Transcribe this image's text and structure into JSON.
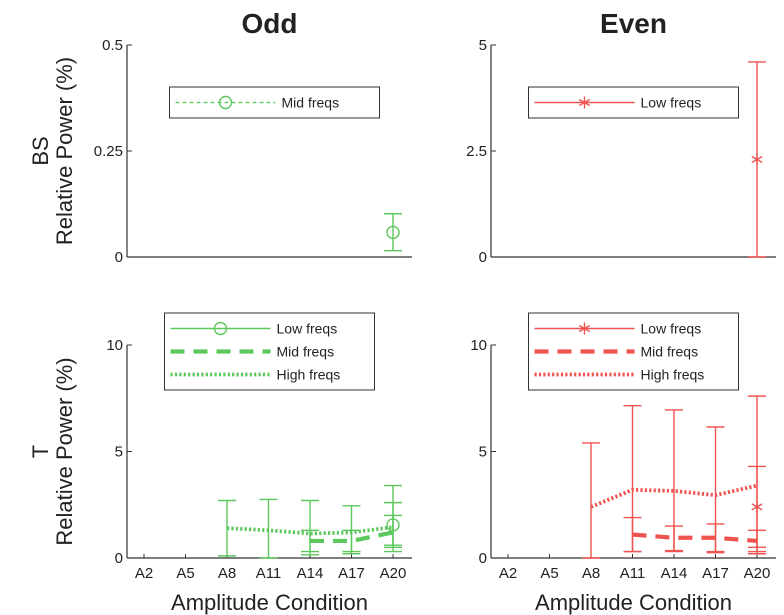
{
  "columns": [
    "Odd",
    "Even"
  ],
  "rows": [
    {
      "label": "BS",
      "ylabel": "Relative Power (%)"
    },
    {
      "label": "T",
      "ylabel": "Relative Power (%)"
    }
  ],
  "xlabel": "Amplitude Condition",
  "chart_data": [
    {
      "type": "line",
      "row": 0,
      "col": 0,
      "categories": [
        "A2",
        "A5",
        "A8",
        "A11",
        "A14",
        "A17",
        "A20"
      ],
      "ylim": [
        0,
        0.5
      ],
      "yticks": [
        0,
        0.25,
        0.5
      ],
      "ytick_labels": [
        "0",
        "0.25",
        "0.5"
      ],
      "show_xticks": false,
      "color": "#5cc85c",
      "legend_placement": "top",
      "series": [
        {
          "name": "Mid freqs",
          "style": "dashed-thin",
          "marker": "circle",
          "values": [
            null,
            null,
            null,
            null,
            null,
            null,
            0.058
          ],
          "err_low": [
            null,
            null,
            null,
            null,
            null,
            null,
            0.015
          ],
          "err_high": [
            null,
            null,
            null,
            null,
            null,
            null,
            0.102
          ]
        }
      ]
    },
    {
      "type": "line",
      "row": 0,
      "col": 1,
      "categories": [
        "A2",
        "A5",
        "A8",
        "A11",
        "A14",
        "A17",
        "A20"
      ],
      "ylim": [
        0,
        5
      ],
      "yticks": [
        0,
        2.5,
        5
      ],
      "ytick_labels": [
        "0",
        "2.5",
        "5"
      ],
      "show_xticks": false,
      "color": "#ef5350",
      "legend_placement": "top",
      "series": [
        {
          "name": "Low freqs",
          "style": "solid",
          "marker": "star",
          "values": [
            null,
            null,
            null,
            null,
            null,
            null,
            2.3
          ],
          "err_low": [
            null,
            null,
            null,
            null,
            null,
            null,
            0
          ],
          "err_high": [
            null,
            null,
            null,
            null,
            null,
            null,
            4.6
          ]
        }
      ]
    },
    {
      "type": "line",
      "row": 1,
      "col": 0,
      "categories": [
        "A2",
        "A5",
        "A8",
        "A11",
        "A14",
        "A17",
        "A20"
      ],
      "ylim": [
        0,
        10
      ],
      "yticks": [
        0,
        5,
        10
      ],
      "ytick_labels": [
        "0",
        "5",
        "10"
      ],
      "show_xticks": true,
      "color": "#5cc85c",
      "legend_placement": "top",
      "series": [
        {
          "name": "Low freqs",
          "style": "solid",
          "marker": "circle",
          "values": [
            null,
            null,
            null,
            null,
            null,
            null,
            1.55
          ],
          "err_low": [
            null,
            null,
            null,
            null,
            null,
            null,
            0.5
          ],
          "err_high": [
            null,
            null,
            null,
            null,
            null,
            null,
            2.6
          ]
        },
        {
          "name": "Mid freqs",
          "style": "dashed-thick",
          "marker": "none",
          "values": [
            null,
            null,
            null,
            null,
            0.8,
            0.8,
            1.2
          ],
          "err_low": [
            null,
            null,
            null,
            null,
            0.3,
            0.3,
            0.6
          ],
          "err_high": [
            null,
            null,
            null,
            null,
            1.3,
            1.3,
            2.0
          ]
        },
        {
          "name": "High freqs",
          "style": "dotted",
          "marker": "none",
          "values": [
            null,
            null,
            1.4,
            1.3,
            1.15,
            1.2,
            1.45
          ],
          "err_low": [
            null,
            null,
            0.1,
            0,
            0.15,
            0.2,
            0.3
          ],
          "err_high": [
            null,
            null,
            2.7,
            2.75,
            2.7,
            2.45,
            3.4
          ]
        }
      ]
    },
    {
      "type": "line",
      "row": 1,
      "col": 1,
      "categories": [
        "A2",
        "A5",
        "A8",
        "A11",
        "A14",
        "A17",
        "A20"
      ],
      "ylim": [
        0,
        10
      ],
      "yticks": [
        0,
        5,
        10
      ],
      "ytick_labels": [
        "0",
        "5",
        "10"
      ],
      "show_xticks": true,
      "color": "#ef5350",
      "legend_placement": "top",
      "series": [
        {
          "name": "Low freqs",
          "style": "solid",
          "marker": "star",
          "values": [
            null,
            null,
            null,
            null,
            null,
            null,
            2.4
          ],
          "err_low": [
            null,
            null,
            null,
            null,
            null,
            null,
            0.5
          ],
          "err_high": [
            null,
            null,
            null,
            null,
            null,
            null,
            4.3
          ]
        },
        {
          "name": "Mid freqs",
          "style": "dashed-thick",
          "marker": "none",
          "values": [
            null,
            null,
            null,
            1.1,
            0.95,
            0.95,
            0.8
          ],
          "err_low": [
            null,
            null,
            null,
            0.3,
            0.35,
            0.25,
            0.2
          ],
          "err_high": [
            null,
            null,
            null,
            1.9,
            1.5,
            1.6,
            1.3
          ]
        },
        {
          "name": "High freqs",
          "style": "dotted",
          "marker": "none",
          "values": [
            null,
            null,
            2.4,
            3.2,
            3.15,
            2.95,
            3.4
          ],
          "err_low": [
            null,
            null,
            0,
            0.3,
            0.3,
            0.3,
            0.3
          ],
          "err_high": [
            null,
            null,
            5.4,
            7.15,
            6.95,
            6.15,
            7.6
          ]
        }
      ]
    }
  ]
}
